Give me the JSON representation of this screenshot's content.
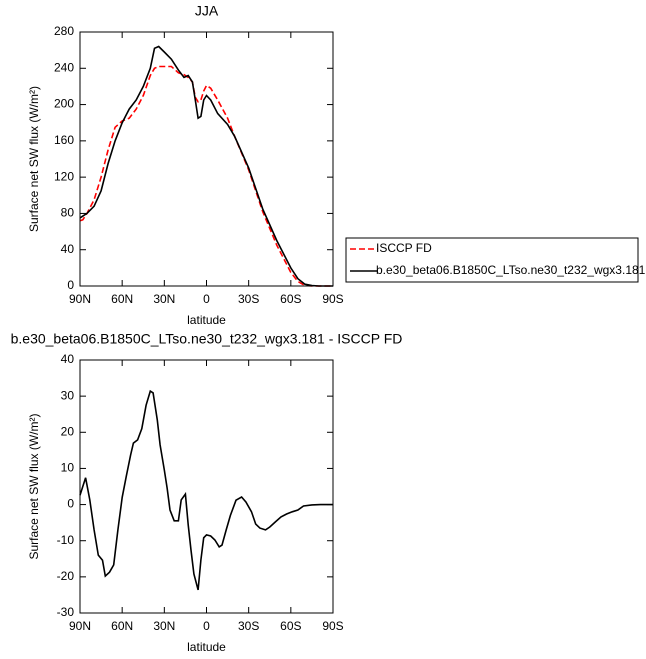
{
  "chart_data": [
    {
      "type": "line",
      "title": "JJA",
      "xlabel": "latitude",
      "ylabel": "Surface net SW flux (W/m²)",
      "x": [
        90,
        88,
        85,
        80,
        75,
        70,
        65,
        60,
        55,
        50,
        45,
        40,
        37,
        34,
        30,
        25,
        20,
        16,
        13,
        10,
        8,
        6,
        4,
        2,
        0,
        -3,
        -8,
        -15,
        -20,
        -30,
        -40,
        -50,
        -60,
        -65,
        -70,
        -75,
        -80,
        -90
      ],
      "series": [
        {
          "name": "ISCCP FD",
          "color": "#ff0000",
          "style": "dashed",
          "values": [
            72,
            73,
            80,
            95,
            120,
            150,
            175,
            182,
            185,
            195,
            210,
            232,
            240,
            242,
            242,
            242,
            235,
            233,
            230,
            225,
            208,
            203,
            205,
            215,
            221,
            218,
            205,
            185,
            165,
            128,
            82,
            45,
            15,
            5,
            0.5,
            0,
            0,
            0
          ]
        },
        {
          "name": "b.e30_beta06.B1850C_LTso.ne30_t232_wgx3.181",
          "color": "#000000",
          "style": "solid",
          "values": [
            75,
            77,
            80,
            88,
            105,
            135,
            160,
            180,
            195,
            205,
            220,
            240,
            262,
            264,
            258,
            250,
            238,
            230,
            232,
            225,
            205,
            185,
            187,
            205,
            210,
            205,
            190,
            178,
            165,
            130,
            85,
            50,
            20,
            8,
            2,
            0.5,
            0,
            0
          ]
        }
      ],
      "xlim": [
        90,
        -90
      ],
      "xticks": [
        {
          "value": 90,
          "label": "90N"
        },
        {
          "value": 60,
          "label": "60N"
        },
        {
          "value": 30,
          "label": "30N"
        },
        0,
        {
          "value": -30,
          "label": "30S"
        },
        {
          "value": -60,
          "label": "60S"
        },
        {
          "value": -90,
          "label": "90S"
        }
      ],
      "ylim": [
        0,
        280
      ],
      "yticks": [
        0,
        40,
        80,
        120,
        160,
        200,
        240,
        280
      ],
      "legend_position": "right"
    },
    {
      "type": "line",
      "title": "b.e30_beta06.B1850C_LTso.ne30_t232_wgx3.181 - ISCCP FD",
      "xlabel": "latitude",
      "ylabel": "Surface net SW flux (W/m²)",
      "x": [
        90,
        86,
        83,
        80,
        77,
        74,
        72,
        69,
        66,
        63,
        60,
        57,
        54,
        52,
        49,
        46,
        43,
        40,
        38,
        35,
        33,
        30,
        28,
        26,
        23,
        20,
        18,
        15,
        13,
        11,
        9,
        6,
        4,
        2,
        0,
        -3,
        -6,
        -9,
        -11,
        -14,
        -17,
        -21,
        -25,
        -28,
        -32,
        -35,
        -38,
        -42,
        -45,
        -49,
        -53,
        -57,
        -61,
        -65,
        -69,
        -75,
        -81,
        -90
      ],
      "series": [
        {
          "color": "#000000",
          "style": "solid",
          "values": [
            2.6,
            7.4,
            1.3,
            -7,
            -14,
            -15.4,
            -19.8,
            -18.7,
            -16.7,
            -7,
            2,
            8,
            13.7,
            17,
            17.9,
            21,
            27.5,
            31.4,
            30.9,
            23.4,
            16.5,
            9.6,
            4.6,
            -1.5,
            -4.5,
            -4.5,
            1.3,
            2.9,
            -5.6,
            -12.6,
            -19.2,
            -23.6,
            -15.3,
            -9.2,
            -8.4,
            -8.7,
            -9.8,
            -11.7,
            -11.2,
            -7,
            -3,
            1.2,
            2.1,
            0.7,
            -2,
            -5.4,
            -6.5,
            -7,
            -6.2,
            -4.8,
            -3.4,
            -2.6,
            -2,
            -1.5,
            -0.4,
            -0.1,
            0,
            0
          ]
        }
      ],
      "xlim": [
        90,
        -90
      ],
      "xticks": [
        {
          "value": 90,
          "label": "90N"
        },
        {
          "value": 60,
          "label": "60N"
        },
        {
          "value": 30,
          "label": "30N"
        },
        0,
        {
          "value": -30,
          "label": "30S"
        },
        {
          "value": -60,
          "label": "60S"
        },
        {
          "value": -90,
          "label": "90S"
        }
      ],
      "ylim": [
        -30,
        40
      ],
      "yticks": [
        -30,
        -20,
        -10,
        0,
        10,
        20,
        30,
        40
      ]
    }
  ]
}
